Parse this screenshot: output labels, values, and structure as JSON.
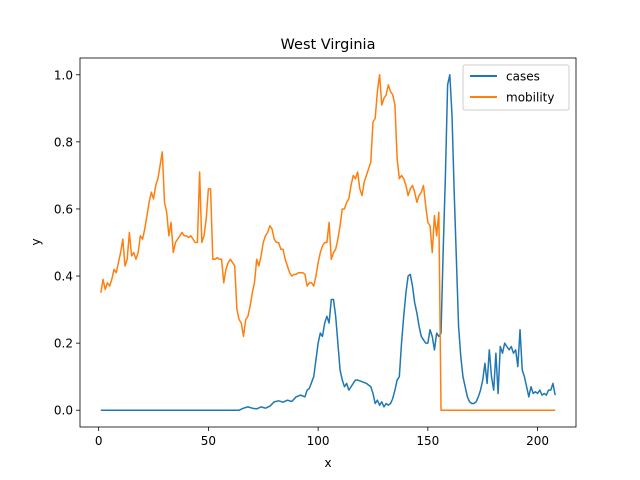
{
  "chart_data": {
    "type": "line",
    "title": "West Virginia",
    "xlabel": "x",
    "ylabel": "y",
    "xlim": [
      -8.5,
      217.5
    ],
    "ylim": [
      -0.05,
      1.05
    ],
    "xticks": [
      0,
      50,
      100,
      150,
      200
    ],
    "yticks": [
      0.0,
      0.2,
      0.4,
      0.6,
      0.8,
      1.0
    ],
    "xtick_labels": [
      "0",
      "50",
      "100",
      "150",
      "200"
    ],
    "ytick_labels": [
      "0.0",
      "0.2",
      "0.4",
      "0.6",
      "0.8",
      "1.0"
    ],
    "grid": false,
    "legend_position": "top-right",
    "series": [
      {
        "name": "cases",
        "color": "#1f77b4",
        "points": [
          [
            1,
            0
          ],
          [
            10,
            0
          ],
          [
            20,
            0
          ],
          [
            30,
            0
          ],
          [
            40,
            0
          ],
          [
            50,
            0
          ],
          [
            60,
            0
          ],
          [
            64,
            0
          ],
          [
            66,
            0.006
          ],
          [
            68,
            0.01
          ],
          [
            70,
            0.006
          ],
          [
            72,
            0.004
          ],
          [
            74,
            0.01
          ],
          [
            76,
            0.006
          ],
          [
            78,
            0.012
          ],
          [
            80,
            0.025
          ],
          [
            82,
            0.028
          ],
          [
            84,
            0.024
          ],
          [
            86,
            0.03
          ],
          [
            88,
            0.026
          ],
          [
            90,
            0.04
          ],
          [
            92,
            0.045
          ],
          [
            94,
            0.04
          ],
          [
            95,
            0.06
          ],
          [
            96,
            0.065
          ],
          [
            98,
            0.1
          ],
          [
            100,
            0.2
          ],
          [
            101,
            0.23
          ],
          [
            102,
            0.22
          ],
          [
            103,
            0.26
          ],
          [
            104,
            0.28
          ],
          [
            105,
            0.26
          ],
          [
            106,
            0.33
          ],
          [
            107,
            0.33
          ],
          [
            108,
            0.28
          ],
          [
            109,
            0.2
          ],
          [
            110,
            0.12
          ],
          [
            111,
            0.09
          ],
          [
            112,
            0.07
          ],
          [
            113,
            0.08
          ],
          [
            114,
            0.06
          ],
          [
            115,
            0.07
          ],
          [
            116,
            0.08
          ],
          [
            117,
            0.09
          ],
          [
            118,
            0.09
          ],
          [
            120,
            0.085
          ],
          [
            122,
            0.08
          ],
          [
            124,
            0.07
          ],
          [
            125,
            0.05
          ],
          [
            126,
            0.02
          ],
          [
            127,
            0.03
          ],
          [
            128,
            0.015
          ],
          [
            129,
            0.025
          ],
          [
            130,
            0.01
          ],
          [
            131,
            0.02
          ],
          [
            132,
            0.015
          ],
          [
            133,
            0.02
          ],
          [
            134,
            0.035
          ],
          [
            135,
            0.06
          ],
          [
            136,
            0.09
          ],
          [
            137,
            0.1
          ],
          [
            138,
            0.2
          ],
          [
            139,
            0.28
          ],
          [
            140,
            0.35
          ],
          [
            141,
            0.4
          ],
          [
            142,
            0.405
          ],
          [
            143,
            0.37
          ],
          [
            144,
            0.32
          ],
          [
            145,
            0.29
          ],
          [
            146,
            0.25
          ],
          [
            147,
            0.22
          ],
          [
            148,
            0.21
          ],
          [
            149,
            0.2
          ],
          [
            150,
            0.2
          ],
          [
            151,
            0.24
          ],
          [
            152,
            0.22
          ],
          [
            153,
            0.18
          ],
          [
            154,
            0.23
          ],
          [
            155,
            0.22
          ],
          [
            156,
            0.23
          ],
          [
            157,
            0.48
          ],
          [
            158,
            0.7
          ],
          [
            159,
            0.97
          ],
          [
            160,
            1.0
          ],
          [
            161,
            0.88
          ],
          [
            162,
            0.65
          ],
          [
            163,
            0.45
          ],
          [
            164,
            0.25
          ],
          [
            165,
            0.16
          ],
          [
            166,
            0.1
          ],
          [
            167,
            0.07
          ],
          [
            168,
            0.04
          ],
          [
            169,
            0.025
          ],
          [
            170,
            0.02
          ],
          [
            171,
            0.02
          ],
          [
            172,
            0.025
          ],
          [
            173,
            0.04
          ],
          [
            174,
            0.06
          ],
          [
            175,
            0.09
          ],
          [
            176,
            0.14
          ],
          [
            177,
            0.08
          ],
          [
            178,
            0.18
          ],
          [
            179,
            0.1
          ],
          [
            180,
            0.06
          ],
          [
            181,
            0.17
          ],
          [
            182,
            0.05
          ],
          [
            183,
            0.19
          ],
          [
            184,
            0.17
          ],
          [
            185,
            0.2
          ],
          [
            186,
            0.19
          ],
          [
            187,
            0.18
          ],
          [
            188,
            0.19
          ],
          [
            189,
            0.17
          ],
          [
            190,
            0.18
          ],
          [
            191,
            0.13
          ],
          [
            192,
            0.24
          ],
          [
            193,
            0.12
          ],
          [
            194,
            0.1
          ],
          [
            195,
            0.07
          ],
          [
            196,
            0.04
          ],
          [
            197,
            0.07
          ],
          [
            198,
            0.05
          ],
          [
            199,
            0.055
          ],
          [
            200,
            0.05
          ],
          [
            201,
            0.06
          ],
          [
            202,
            0.045
          ],
          [
            203,
            0.05
          ],
          [
            204,
            0.045
          ],
          [
            205,
            0.06
          ],
          [
            206,
            0.06
          ],
          [
            207,
            0.08
          ],
          [
            208,
            0.045
          ]
        ]
      },
      {
        "name": "mobility",
        "color": "#ff7f0e",
        "points": [
          [
            1,
            0.35
          ],
          [
            2,
            0.39
          ],
          [
            3,
            0.36
          ],
          [
            4,
            0.38
          ],
          [
            5,
            0.37
          ],
          [
            6,
            0.39
          ],
          [
            7,
            0.42
          ],
          [
            8,
            0.41
          ],
          [
            9,
            0.44
          ],
          [
            10,
            0.47
          ],
          [
            11,
            0.51
          ],
          [
            12,
            0.43
          ],
          [
            13,
            0.45
          ],
          [
            14,
            0.53
          ],
          [
            15,
            0.46
          ],
          [
            16,
            0.47
          ],
          [
            17,
            0.45
          ],
          [
            18,
            0.47
          ],
          [
            19,
            0.52
          ],
          [
            20,
            0.51
          ],
          [
            21,
            0.54
          ],
          [
            22,
            0.58
          ],
          [
            23,
            0.62
          ],
          [
            24,
            0.65
          ],
          [
            25,
            0.63
          ],
          [
            26,
            0.67
          ],
          [
            27,
            0.69
          ],
          [
            28,
            0.73
          ],
          [
            29,
            0.77
          ],
          [
            30,
            0.62
          ],
          [
            31,
            0.59
          ],
          [
            32,
            0.52
          ],
          [
            33,
            0.56
          ],
          [
            34,
            0.47
          ],
          [
            35,
            0.5
          ],
          [
            36,
            0.51
          ],
          [
            37,
            0.52
          ],
          [
            38,
            0.53
          ],
          [
            39,
            0.52
          ],
          [
            40,
            0.52
          ],
          [
            41,
            0.515
          ],
          [
            42,
            0.52
          ],
          [
            43,
            0.51
          ],
          [
            44,
            0.5
          ],
          [
            45,
            0.5
          ],
          [
            46,
            0.71
          ],
          [
            47,
            0.5
          ],
          [
            48,
            0.52
          ],
          [
            49,
            0.57
          ],
          [
            50,
            0.66
          ],
          [
            51,
            0.66
          ],
          [
            52,
            0.45
          ],
          [
            53,
            0.45
          ],
          [
            54,
            0.455
          ],
          [
            55,
            0.45
          ],
          [
            56,
            0.45
          ],
          [
            57,
            0.38
          ],
          [
            58,
            0.42
          ],
          [
            59,
            0.44
          ],
          [
            60,
            0.45
          ],
          [
            61,
            0.44
          ],
          [
            62,
            0.43
          ],
          [
            63,
            0.3
          ],
          [
            64,
            0.27
          ],
          [
            65,
            0.26
          ],
          [
            66,
            0.22
          ],
          [
            67,
            0.27
          ],
          [
            68,
            0.28
          ],
          [
            69,
            0.31
          ],
          [
            70,
            0.35
          ],
          [
            71,
            0.38
          ],
          [
            72,
            0.45
          ],
          [
            73,
            0.43
          ],
          [
            74,
            0.46
          ],
          [
            75,
            0.5
          ],
          [
            76,
            0.52
          ],
          [
            77,
            0.53
          ],
          [
            78,
            0.55
          ],
          [
            79,
            0.54
          ],
          [
            80,
            0.51
          ],
          [
            81,
            0.5
          ],
          [
            82,
            0.5
          ],
          [
            83,
            0.48
          ],
          [
            84,
            0.48
          ],
          [
            85,
            0.45
          ],
          [
            86,
            0.43
          ],
          [
            87,
            0.41
          ],
          [
            88,
            0.4
          ],
          [
            89,
            0.405
          ],
          [
            90,
            0.405
          ],
          [
            91,
            0.41
          ],
          [
            92,
            0.41
          ],
          [
            93,
            0.41
          ],
          [
            94,
            0.405
          ],
          [
            95,
            0.37
          ],
          [
            96,
            0.38
          ],
          [
            97,
            0.38
          ],
          [
            98,
            0.37
          ],
          [
            99,
            0.4
          ],
          [
            100,
            0.44
          ],
          [
            101,
            0.47
          ],
          [
            102,
            0.49
          ],
          [
            103,
            0.5
          ],
          [
            104,
            0.5
          ],
          [
            105,
            0.56
          ],
          [
            106,
            0.45
          ],
          [
            107,
            0.47
          ],
          [
            108,
            0.48
          ],
          [
            109,
            0.51
          ],
          [
            110,
            0.55
          ],
          [
            111,
            0.6
          ],
          [
            112,
            0.6
          ],
          [
            113,
            0.62
          ],
          [
            114,
            0.63
          ],
          [
            115,
            0.67
          ],
          [
            116,
            0.7
          ],
          [
            117,
            0.69
          ],
          [
            118,
            0.71
          ],
          [
            119,
            0.66
          ],
          [
            120,
            0.64
          ],
          [
            121,
            0.68
          ],
          [
            122,
            0.7
          ],
          [
            123,
            0.72
          ],
          [
            124,
            0.74
          ],
          [
            125,
            0.86
          ],
          [
            126,
            0.87
          ],
          [
            127,
            0.95
          ],
          [
            128,
            1.0
          ],
          [
            129,
            0.91
          ],
          [
            130,
            0.93
          ],
          [
            131,
            0.94
          ],
          [
            132,
            0.97
          ],
          [
            133,
            0.95
          ],
          [
            134,
            0.94
          ],
          [
            135,
            0.91
          ],
          [
            136,
            0.75
          ],
          [
            137,
            0.69
          ],
          [
            138,
            0.7
          ],
          [
            139,
            0.69
          ],
          [
            140,
            0.67
          ],
          [
            141,
            0.64
          ],
          [
            142,
            0.66
          ],
          [
            143,
            0.67
          ],
          [
            144,
            0.65
          ],
          [
            145,
            0.62
          ],
          [
            146,
            0.64
          ],
          [
            147,
            0.65
          ],
          [
            148,
            0.67
          ],
          [
            149,
            0.61
          ],
          [
            150,
            0.56
          ],
          [
            151,
            0.55
          ],
          [
            152,
            0.47
          ],
          [
            153,
            0.58
          ],
          [
            154,
            0.52
          ],
          [
            155,
            0.59
          ],
          [
            156,
            0.0
          ],
          [
            160,
            0.0
          ],
          [
            170,
            0.0
          ],
          [
            180,
            0.0
          ],
          [
            190,
            0.0
          ],
          [
            200,
            0.0
          ],
          [
            208,
            0.0
          ]
        ]
      }
    ]
  }
}
